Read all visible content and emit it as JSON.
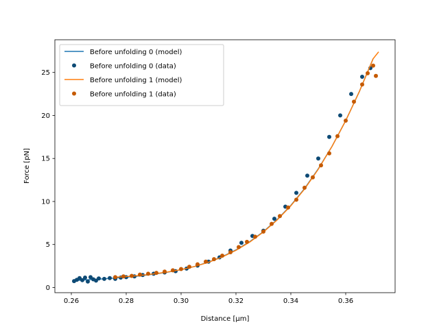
{
  "chart_data": {
    "type": "scatter",
    "xlabel": "Distance [μm]",
    "ylabel": "Force [pN]",
    "xlim": [
      0.254,
      0.378
    ],
    "ylim": [
      -0.6,
      28.8
    ],
    "xticks": [
      0.26,
      0.28,
      0.3,
      0.32,
      0.34,
      0.36
    ],
    "xtick_labels": [
      "0.26",
      "0.28",
      "0.30",
      "0.32",
      "0.34",
      "0.36"
    ],
    "yticks": [
      0,
      5,
      10,
      15,
      20,
      25
    ],
    "ytick_labels": [
      "0",
      "5",
      "10",
      "15",
      "20",
      "25"
    ],
    "grid": false,
    "legend_position": "top-left",
    "series": [
      {
        "name": "Before unfolding 0 (model)",
        "kind": "line",
        "color": "#1f77b4",
        "x": [
          0.261,
          0.265,
          0.27,
          0.275,
          0.28,
          0.285,
          0.29,
          0.295,
          0.3,
          0.305,
          0.31,
          0.315,
          0.32,
          0.325,
          0.33,
          0.335,
          0.34,
          0.345,
          0.35,
          0.355,
          0.36,
          0.365,
          0.37
        ],
        "y": [
          0.8,
          0.88,
          0.98,
          1.08,
          1.2,
          1.35,
          1.55,
          1.78,
          2.07,
          2.45,
          2.95,
          3.58,
          4.37,
          5.33,
          6.5,
          7.9,
          9.55,
          11.5,
          13.8,
          16.4,
          19.4,
          22.8,
          26.6
        ]
      },
      {
        "name": "Before unfolding 0 (data)",
        "kind": "points",
        "color": "#0d4a75",
        "x": [
          0.261,
          0.262,
          0.263,
          0.264,
          0.265,
          0.266,
          0.267,
          0.268,
          0.269,
          0.27,
          0.272,
          0.274,
          0.276,
          0.278,
          0.28,
          0.283,
          0.286,
          0.29,
          0.294,
          0.298,
          0.302,
          0.306,
          0.31,
          0.314,
          0.318,
          0.322,
          0.326,
          0.33,
          0.334,
          0.338,
          0.342,
          0.346,
          0.35,
          0.354,
          0.358,
          0.362,
          0.366,
          0.369
        ],
        "y": [
          0.75,
          0.9,
          1.1,
          0.85,
          1.15,
          0.7,
          1.2,
          0.95,
          0.8,
          1.05,
          1.0,
          1.1,
          1.0,
          1.15,
          1.2,
          1.3,
          1.45,
          1.6,
          1.75,
          1.9,
          2.2,
          2.55,
          3.0,
          3.5,
          4.3,
          5.2,
          6.0,
          6.6,
          8.0,
          9.4,
          11.0,
          13.0,
          15.0,
          17.5,
          20.0,
          22.5,
          24.5,
          25.5
        ]
      },
      {
        "name": "Before unfolding 1 (model)",
        "kind": "line",
        "color": "#ff7f0e",
        "x": [
          0.276,
          0.28,
          0.285,
          0.29,
          0.295,
          0.3,
          0.305,
          0.31,
          0.315,
          0.32,
          0.325,
          0.33,
          0.335,
          0.34,
          0.345,
          0.35,
          0.355,
          0.36,
          0.365,
          0.37,
          0.372
        ],
        "y": [
          1.2,
          1.27,
          1.4,
          1.58,
          1.8,
          2.08,
          2.45,
          2.93,
          3.55,
          4.32,
          5.28,
          6.45,
          7.85,
          9.5,
          11.45,
          13.75,
          16.4,
          19.4,
          22.8,
          26.6,
          27.4
        ]
      },
      {
        "name": "Before unfolding 1 (data)",
        "kind": "points",
        "color": "#c55a00",
        "x": [
          0.276,
          0.279,
          0.282,
          0.285,
          0.288,
          0.291,
          0.294,
          0.297,
          0.3,
          0.303,
          0.306,
          0.309,
          0.312,
          0.315,
          0.318,
          0.321,
          0.324,
          0.327,
          0.33,
          0.333,
          0.336,
          0.339,
          0.342,
          0.345,
          0.348,
          0.351,
          0.354,
          0.357,
          0.36,
          0.363,
          0.366,
          0.368,
          0.37,
          0.371
        ],
        "y": [
          1.2,
          1.3,
          1.35,
          1.5,
          1.6,
          1.7,
          1.85,
          2.0,
          2.15,
          2.4,
          2.7,
          3.0,
          3.3,
          3.7,
          4.1,
          4.7,
          5.3,
          5.9,
          6.5,
          7.4,
          8.3,
          9.3,
          10.2,
          11.6,
          12.8,
          14.2,
          15.6,
          17.6,
          19.4,
          21.6,
          23.6,
          24.9,
          25.8,
          24.6
        ]
      }
    ]
  }
}
